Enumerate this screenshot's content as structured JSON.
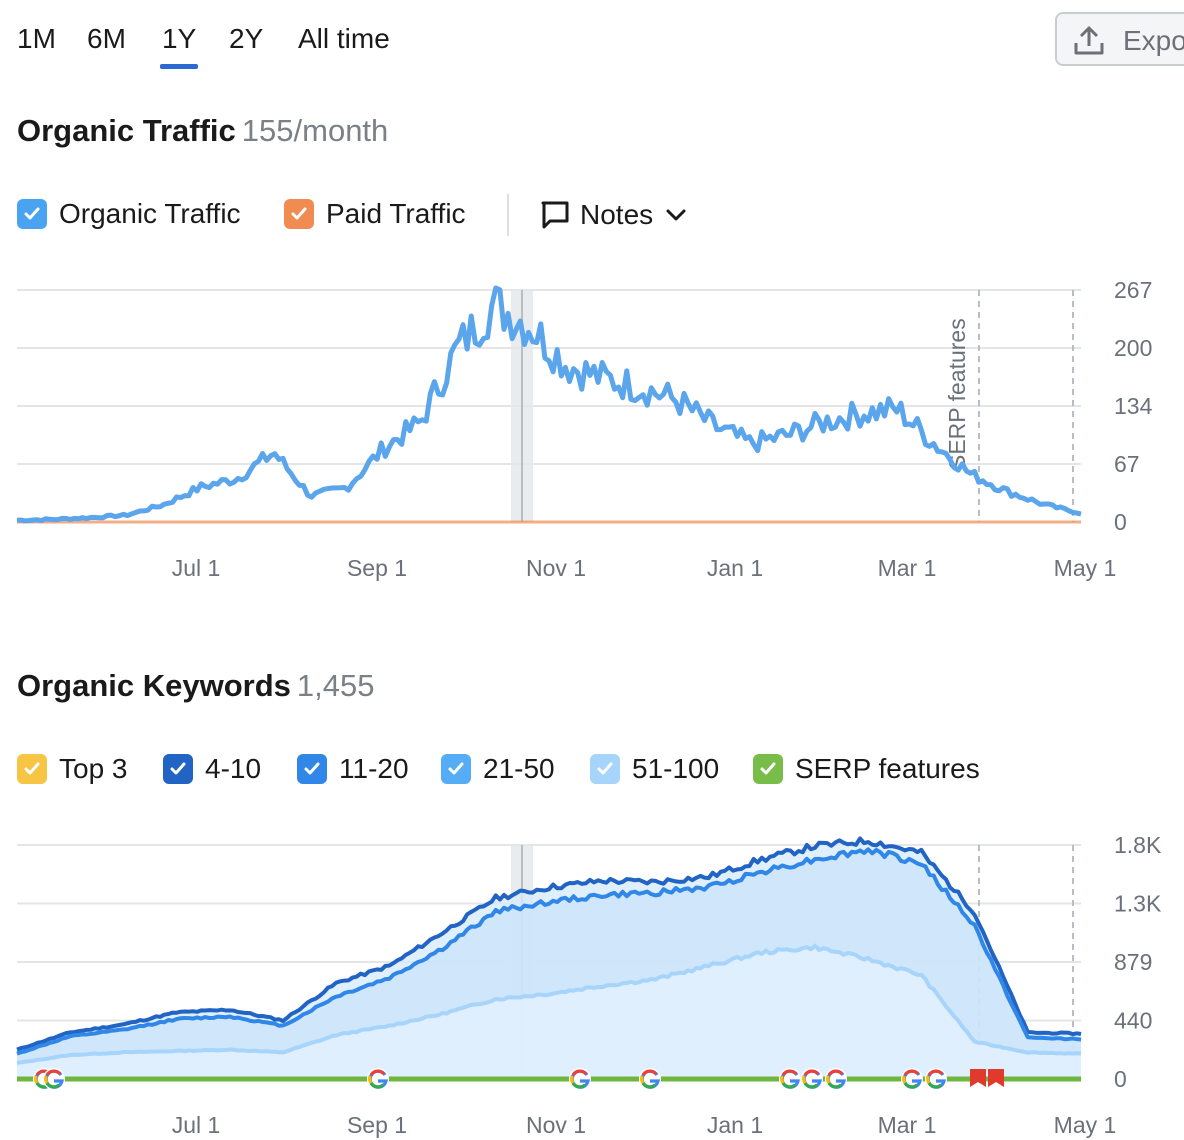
{
  "period_tabs": [
    {
      "label": "1M",
      "active": false
    },
    {
      "label": "6M",
      "active": false
    },
    {
      "label": "1Y",
      "active": true
    },
    {
      "label": "2Y",
      "active": false
    },
    {
      "label": "All time",
      "active": false
    }
  ],
  "export": {
    "label": "Expo",
    "icon": "upload-icon"
  },
  "traffic_section": {
    "title": "Organic Traffic",
    "value": "155/month",
    "legend": [
      {
        "label": "Organic Traffic",
        "color": "#4aa3f0",
        "checked": true
      },
      {
        "label": "Paid Traffic",
        "color": "#f08c52",
        "checked": true
      }
    ],
    "notes_label": "Notes"
  },
  "keywords_section": {
    "title": "Organic Keywords",
    "value": "1,455",
    "legend": [
      {
        "label": "Top 3",
        "color": "#f6c544",
        "checked": true
      },
      {
        "label": "4-10",
        "color": "#2264c4",
        "checked": true
      },
      {
        "label": "11-20",
        "color": "#3087e8",
        "checked": true
      },
      {
        "label": "21-50",
        "color": "#54adf5",
        "checked": true
      },
      {
        "label": "51-100",
        "color": "#a6d4fa",
        "checked": true
      },
      {
        "label": "SERP features",
        "color": "#78bd47",
        "checked": true
      }
    ]
  },
  "chart_data": [
    {
      "type": "line",
      "title": "Organic Traffic",
      "x_ticks": [
        "Jul 1",
        "Sep 1",
        "Nov 1",
        "Jan 1",
        "Mar 1",
        "May 1"
      ],
      "y_ticks": [
        "0",
        "67",
        "134",
        "200",
        "267"
      ],
      "ylim": [
        0,
        267
      ],
      "grid": true,
      "annotation": "SERP features",
      "series": [
        {
          "name": "Organic Traffic",
          "color": "#5aa5ec",
          "x": [
            "May 1",
            "May 15",
            "Jun 1",
            "Jun 15",
            "Jul 1",
            "Jul 15",
            "Aug 1",
            "Aug 10",
            "Aug 20",
            "Sep 1",
            "Sep 10",
            "Sep 20",
            "Oct 1",
            "Oct 8",
            "Oct 15",
            "Oct 22",
            "Nov 1",
            "Nov 15",
            "Dec 1",
            "Dec 15",
            "Jan 1",
            "Jan 15",
            "Feb 1",
            "Feb 15",
            "Mar 1",
            "Mar 10",
            "Mar 20",
            "Apr 1",
            "Apr 15",
            "May 1"
          ],
          "values": [
            2,
            3,
            5,
            8,
            20,
            40,
            50,
            80,
            30,
            40,
            85,
            115,
            200,
            250,
            225,
            180,
            165,
            155,
            140,
            110,
            90,
            100,
            115,
            125,
            130,
            90,
            55,
            35,
            20,
            10
          ]
        },
        {
          "name": "Paid Traffic",
          "color": "#f08c52",
          "x": [
            "May 1",
            "May 1"
          ],
          "values": [
            0,
            0
          ]
        }
      ]
    },
    {
      "type": "area",
      "title": "Organic Keywords",
      "x_ticks": [
        "Jul 1",
        "Sep 1",
        "Nov 1",
        "Jan 1",
        "Mar 1",
        "May 1"
      ],
      "y_ticks": [
        "0",
        "440",
        "879",
        "1.3K",
        "1.8K"
      ],
      "ylim": [
        0,
        1758
      ],
      "grid": true,
      "series": [
        {
          "name": "4-10",
          "color": "#2264c4",
          "values": [
            220,
            350,
            410,
            500,
            520,
            440,
            720,
            850,
            1100,
            1360,
            1440,
            1490,
            1480,
            1520,
            1650,
            1750,
            1790,
            1700,
            1250,
            350,
            340
          ]
        },
        {
          "name": "11-20",
          "color": "#3087e8",
          "values": [
            190,
            320,
            370,
            450,
            470,
            400,
            620,
            760,
            980,
            1260,
            1330,
            1380,
            1400,
            1440,
            1560,
            1650,
            1720,
            1620,
            1150,
            310,
            300
          ]
        },
        {
          "name": "51-100",
          "color": "#a6d4fa",
          "values": [
            120,
            180,
            200,
            210,
            220,
            200,
            330,
            400,
            490,
            600,
            640,
            700,
            750,
            850,
            950,
            990,
            900,
            780,
            280,
            200,
            190
          ]
        }
      ],
      "serp_feature_markers": [
        {
          "type": "google",
          "count": 2
        },
        {
          "type": "google",
          "count": 1
        },
        {
          "type": "google",
          "count": 1
        },
        {
          "type": "google",
          "count": 1
        },
        {
          "type": "google",
          "count": 3
        },
        {
          "type": "google",
          "count": 2
        },
        {
          "type": "flag",
          "count": 2
        }
      ]
    }
  ]
}
